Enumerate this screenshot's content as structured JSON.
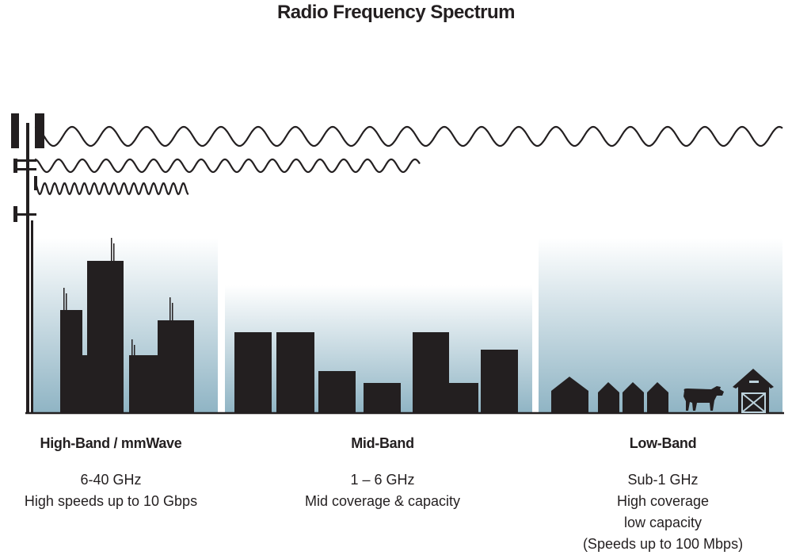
{
  "title": "Radio Frequency Spectrum",
  "colors": {
    "ink": "#231f20",
    "sky_bottom": "#8fb4c4"
  },
  "bands": [
    {
      "name": "High-Band / mmWave",
      "lines": [
        "6-40 GHz",
        "High speeds up to 10 Gbps"
      ]
    },
    {
      "name": "Mid-Band",
      "lines": [
        "1 – 6 GHz",
        "Mid coverage & capacity"
      ]
    },
    {
      "name": "Low-Band",
      "lines": [
        "Sub-1 GHz",
        "High coverage",
        "low capacity",
        "(Speeds up to 100 Mbps)"
      ]
    }
  ]
}
